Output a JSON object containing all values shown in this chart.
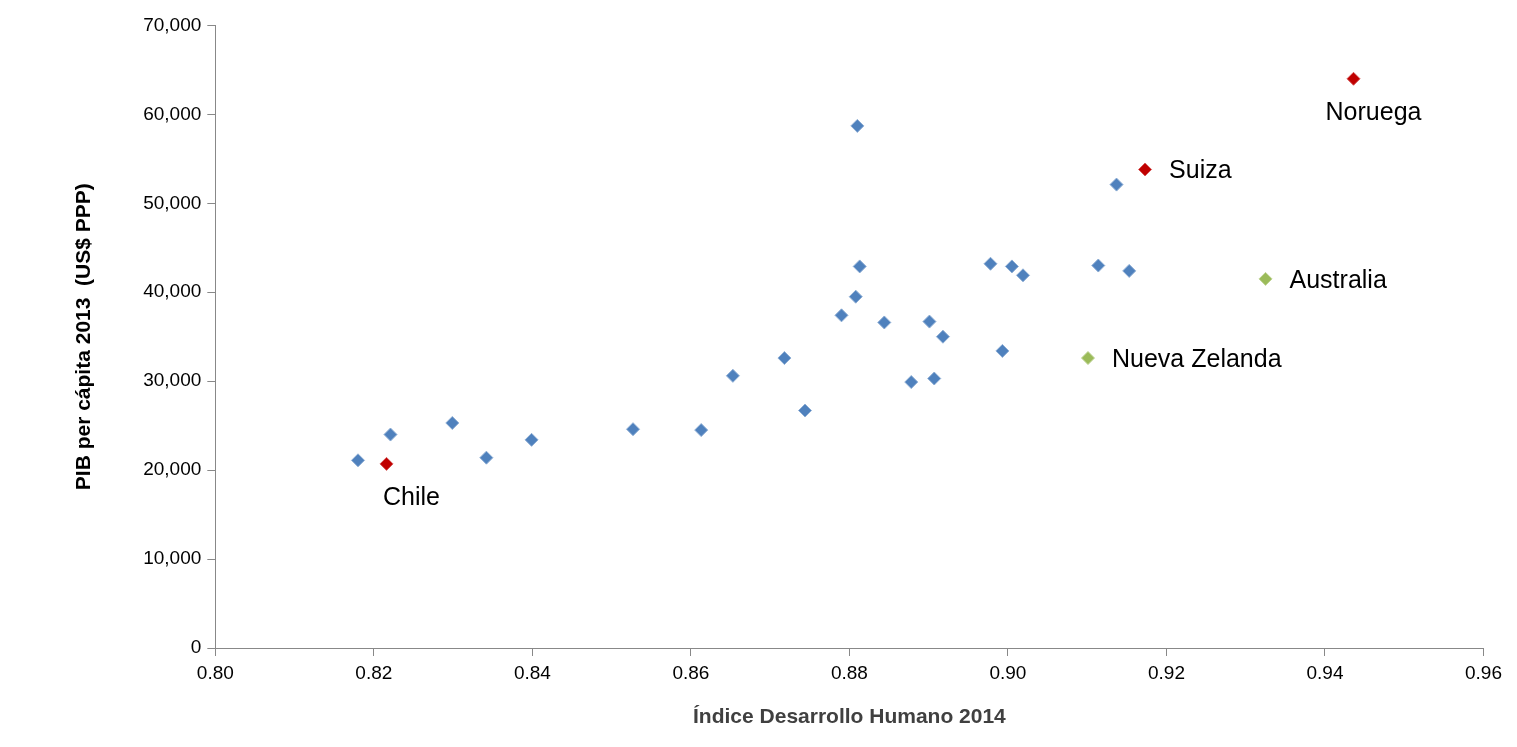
{
  "chart_data": {
    "type": "scatter",
    "xlabel": "Índice Desarrollo Humano 2014",
    "ylabel": "PIB per cápita 2013  (US$ PPP)",
    "marker": "diamond",
    "grid": false,
    "legend": false,
    "xlim": [
      0.8,
      0.96
    ],
    "xticks": [
      {
        "value": 0.8,
        "label": "0.80"
      },
      {
        "value": 0.82,
        "label": "0.82"
      },
      {
        "value": 0.84,
        "label": "0.84"
      },
      {
        "value": 0.86,
        "label": "0.86"
      },
      {
        "value": 0.88,
        "label": "0.88"
      },
      {
        "value": 0.9,
        "label": "0.90"
      },
      {
        "value": 0.92,
        "label": "0.92"
      },
      {
        "value": 0.94,
        "label": "0.94"
      },
      {
        "value": 0.96,
        "label": "0.96"
      }
    ],
    "ylim": [
      0,
      70000
    ],
    "yticks": [
      0,
      {
        "value": 10000,
        "label": "10,000"
      },
      {
        "value": 20000,
        "label": "20,000"
      },
      {
        "value": 30000,
        "label": "30,000"
      },
      {
        "value": 40000,
        "label": "40,000"
      },
      {
        "value": 50000,
        "label": "50,000"
      },
      {
        "value": 60000,
        "label": "60,000"
      },
      {
        "value": 70000,
        "label": "70,000"
      }
    ],
    "series": [
      {
        "color": "#4f81bd",
        "x": [
          0.818,
          0.8221,
          0.8299,
          0.8342,
          0.8399,
          0.8527,
          0.8613,
          0.8653,
          0.8718,
          0.8744,
          0.879,
          0.8808,
          0.881,
          0.8813,
          0.8844,
          0.8878,
          0.8901,
          0.8907,
          0.8918,
          0.8978,
          0.8993,
          0.9005,
          0.9019,
          0.9114,
          0.9137,
          0.9153
        ],
        "values": [
          21100,
          24000,
          25300,
          21400,
          23400,
          24600,
          24500,
          30600,
          32600,
          26700,
          37400,
          39500,
          58700,
          42900,
          36600,
          29900,
          36700,
          30300,
          35000,
          43200,
          33400,
          42900,
          41900,
          43000,
          52100,
          42400
        ]
      },
      {
        "color": "#c00000",
        "x": [
          0.8216,
          0.9173,
          0.9436
        ],
        "values": [
          20700,
          53800,
          64000
        ]
      },
      {
        "color": "#9bbb59",
        "x": [
          0.9101,
          0.9325
        ],
        "values": [
          32600,
          41500
        ]
      }
    ],
    "annotations": [
      {
        "text": "Chile",
        "x": 0.8216,
        "y": 20700
      },
      {
        "text": "Suiza",
        "x": 0.9173,
        "y": 53800
      },
      {
        "text": "Noruega",
        "x": 0.9436,
        "y": 64000
      },
      {
        "text": "Nueva Zelanda",
        "x": 0.9101,
        "y": 32600
      },
      {
        "text": "Australia",
        "x": 0.9325,
        "y": 41500
      }
    ]
  }
}
